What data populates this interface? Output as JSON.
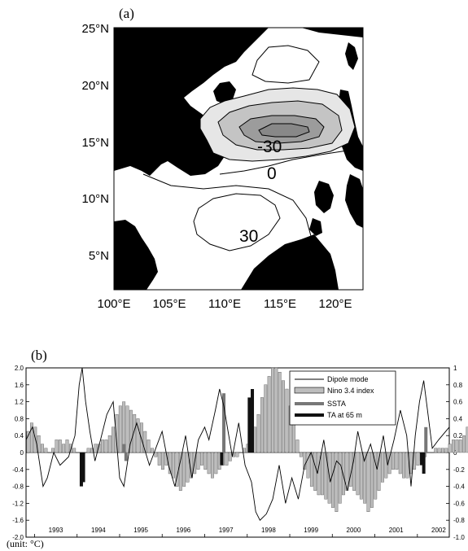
{
  "chart_data": [
    {
      "type": "contour",
      "panel_label": "(a)",
      "x_ticks": [
        "100°E",
        "105°E",
        "110°E",
        "115°E",
        "120°E"
      ],
      "y_ticks": [
        "5°N",
        "10°N",
        "15°N",
        "20°N",
        "25°N"
      ],
      "xlim": [
        100,
        122.5
      ],
      "ylim": [
        2,
        25
      ],
      "contour_levels": [
        -30,
        -20,
        -10,
        0,
        10,
        20,
        30
      ],
      "contour_labels": [
        "-30",
        "0",
        "30"
      ],
      "colors": {
        "land": "#000000",
        "neg_shade_1": "#e6e6e6",
        "neg_shade_2": "#c4c4c4",
        "neg_shade_3": "#9c9c9c"
      }
    },
    {
      "type": "bar+line",
      "panel_label": "(b)",
      "unit_label": "(unit: °C)",
      "left_ylim": [
        -2.0,
        2.0
      ],
      "left_ticks": [
        "2.0",
        "1.6",
        "1.2",
        "0.8",
        "0.4",
        "0",
        "-0.4",
        "-0.8",
        "-1.2",
        "-1.6",
        "-2.0"
      ],
      "right_ylim": [
        -1.0,
        1.0
      ],
      "right_ticks": [
        "1",
        "0.8",
        "0.6",
        "0.4",
        "0.2",
        "0",
        "-0.2",
        "-0.4",
        "-0.6",
        "-0.8",
        "-1.0"
      ],
      "x_ticks": [
        "1993",
        "1994",
        "1995",
        "1996",
        "1997",
        "1998",
        "1999",
        "2000",
        "2001",
        "2002"
      ],
      "xlim": [
        1992.8,
        2002.75
      ],
      "legend": {
        "entries": [
          {
            "label": "Dipole mode",
            "style": "line"
          },
          {
            "label": "Nino 3.4 index",
            "style": "bar"
          },
          {
            "label": "SSTA",
            "style": "thick-gray"
          },
          {
            "label": "TA at 65 m",
            "style": "thick-black"
          }
        ],
        "position": "top-right"
      },
      "series": [
        {
          "name": "Dipole mode",
          "style": "line",
          "axis": "left",
          "points": [
            [
              1992.8,
              0.3
            ],
            [
              1992.95,
              0.6
            ],
            [
              1993.05,
              0.2
            ],
            [
              1993.2,
              -0.8
            ],
            [
              1993.3,
              -0.6
            ],
            [
              1993.45,
              0.0
            ],
            [
              1993.6,
              -0.3
            ],
            [
              1993.8,
              -0.1
            ],
            [
              1993.95,
              0.4
            ],
            [
              1994.05,
              1.6
            ],
            [
              1994.12,
              2.0
            ],
            [
              1994.2,
              1.2
            ],
            [
              1994.3,
              0.5
            ],
            [
              1994.42,
              -0.2
            ],
            [
              1994.55,
              0.3
            ],
            [
              1994.7,
              0.9
            ],
            [
              1994.85,
              1.2
            ],
            [
              1995.0,
              -0.6
            ],
            [
              1995.1,
              -0.8
            ],
            [
              1995.25,
              0.2
            ],
            [
              1995.4,
              0.7
            ],
            [
              1995.55,
              0.2
            ],
            [
              1995.7,
              -0.3
            ],
            [
              1995.85,
              0.1
            ],
            [
              1996.0,
              0.5
            ],
            [
              1996.15,
              -0.3
            ],
            [
              1996.3,
              -0.8
            ],
            [
              1996.45,
              -0.1
            ],
            [
              1996.55,
              0.4
            ],
            [
              1996.7,
              -0.6
            ],
            [
              1996.85,
              0.3
            ],
            [
              1997.0,
              0.6
            ],
            [
              1997.1,
              0.3
            ],
            [
              1997.25,
              1.0
            ],
            [
              1997.35,
              1.5
            ],
            [
              1997.45,
              1.1
            ],
            [
              1997.55,
              0.5
            ],
            [
              1997.65,
              -0.1
            ],
            [
              1997.8,
              0.7
            ],
            [
              1997.95,
              -0.3
            ],
            [
              1998.1,
              -0.7
            ],
            [
              1998.2,
              -1.4
            ],
            [
              1998.3,
              -1.6
            ],
            [
              1998.45,
              -1.45
            ],
            [
              1998.6,
              -1.1
            ],
            [
              1998.75,
              -0.3
            ],
            [
              1998.9,
              -1.2
            ],
            [
              1999.05,
              -0.6
            ],
            [
              1999.2,
              -1.1
            ],
            [
              1999.35,
              -0.3
            ],
            [
              1999.5,
              0.0
            ],
            [
              1999.65,
              -0.5
            ],
            [
              1999.8,
              0.3
            ],
            [
              1999.95,
              -0.7
            ],
            [
              2000.1,
              -0.2
            ],
            [
              2000.2,
              -0.3
            ],
            [
              2000.35,
              -0.9
            ],
            [
              2000.5,
              -0.2
            ],
            [
              2000.6,
              0.5
            ],
            [
              2000.75,
              -0.2
            ],
            [
              2000.9,
              0.2
            ],
            [
              2001.05,
              -0.4
            ],
            [
              2001.2,
              0.4
            ],
            [
              2001.3,
              -0.3
            ],
            [
              2001.45,
              0.3
            ],
            [
              2001.6,
              1.0
            ],
            [
              2001.75,
              0.4
            ],
            [
              2001.85,
              -0.8
            ],
            [
              2001.95,
              0.4
            ],
            [
              2002.05,
              1.2
            ],
            [
              2002.15,
              1.7
            ],
            [
              2002.25,
              0.9
            ],
            [
              2002.35,
              0.1
            ],
            [
              2002.5,
              0.3
            ],
            [
              2002.75,
              0.6
            ]
          ]
        },
        {
          "name": "Nino 3.4 index",
          "style": "bar",
          "axis": "left",
          "x_start": 1992.85,
          "step": 0.0833,
          "values": [
            0.5,
            0.7,
            0.6,
            0.4,
            0.2,
            0.1,
            0.0,
            0.1,
            0.3,
            0.3,
            0.2,
            0.3,
            0.2,
            0.1,
            0.0,
            -0.1,
            0.0,
            0.1,
            0.1,
            0.2,
            0.2,
            0.3,
            0.3,
            0.4,
            0.6,
            0.9,
            1.1,
            1.2,
            1.1,
            1.0,
            0.9,
            0.8,
            0.7,
            0.5,
            0.3,
            0.1,
            -0.1,
            -0.3,
            -0.4,
            -0.3,
            -0.5,
            -0.6,
            -0.8,
            -0.9,
            -0.8,
            -0.7,
            -0.6,
            -0.5,
            -0.4,
            -0.3,
            -0.4,
            -0.5,
            -0.6,
            -0.5,
            -0.4,
            -0.3,
            -0.3,
            -0.2,
            -0.1,
            -0.1,
            0.0,
            0.1,
            0.2,
            0.4,
            0.6,
            0.9,
            1.3,
            1.6,
            1.8,
            2.0,
            2.0,
            1.9,
            1.7,
            1.5,
            1.1,
            0.7,
            0.3,
            -0.1,
            -0.4,
            -0.6,
            -0.8,
            -0.9,
            -1.0,
            -1.0,
            -1.1,
            -1.2,
            -1.3,
            -1.4,
            -1.2,
            -1.0,
            -0.9,
            -0.8,
            -0.9,
            -1.0,
            -1.1,
            -1.2,
            -1.4,
            -1.3,
            -1.1,
            -0.9,
            -0.7,
            -0.6,
            -0.5,
            -0.4,
            -0.4,
            -0.5,
            -0.6,
            -0.6,
            -0.5,
            -0.4,
            -0.3,
            -0.2,
            -0.1,
            0.0,
            0.0,
            0.1,
            0.1,
            0.1,
            0.1,
            0.2,
            0.3,
            0.3,
            0.3,
            0.4,
            0.6,
            0.8,
            1.0,
            1.1,
            1.2,
            1.1
          ]
        },
        {
          "name": "SSTA",
          "style": "thick-gray",
          "axis": "right",
          "points": [
            [
              1995.1,
              0.1
            ],
            [
              1995.15,
              -0.1
            ],
            [
              1997.45,
              0.7
            ],
            [
              2002.2,
              0.3
            ]
          ]
        },
        {
          "name": "TA at 65 m",
          "style": "thick-black",
          "axis": "right",
          "points": [
            [
              1994.1,
              -0.4
            ],
            [
              1994.15,
              -0.35
            ],
            [
              1997.4,
              -0.15
            ],
            [
              1998.05,
              0.65
            ],
            [
              1998.12,
              0.75
            ],
            [
              2002.1,
              -0.15
            ],
            [
              2002.15,
              -0.25
            ]
          ]
        }
      ]
    }
  ]
}
